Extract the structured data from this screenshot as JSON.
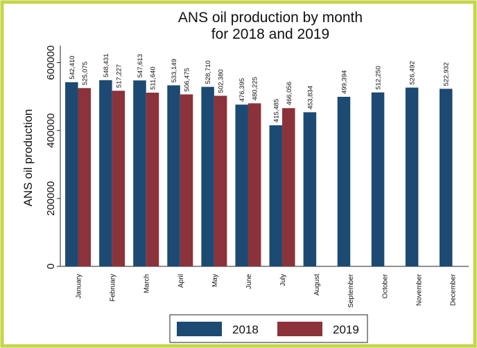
{
  "chart_data": {
    "type": "bar",
    "title": [
      "ANS oil production by month",
      "for 2018 and 2019"
    ],
    "y_label": "ANS oil production",
    "categories": [
      "January",
      "February",
      "March",
      "April",
      "May",
      "June",
      "July",
      "August",
      "September",
      "October",
      "November",
      "December"
    ],
    "series": [
      {
        "name": "2018",
        "color": "#1c4a72",
        "values": [
          542410,
          548431,
          547613,
          533149,
          528710,
          476395,
          415485,
          453834,
          499394,
          512250,
          526492,
          522932
        ],
        "value_labels": [
          "542,410",
          "548,431",
          "547,613",
          "533,149",
          "528,710",
          "476,395",
          "415,485",
          "453,834",
          "499,394",
          "512,250",
          "526,492",
          "522,932"
        ]
      },
      {
        "name": "2019",
        "color": "#8c323a",
        "values": [
          525075,
          517227,
          511640,
          506475,
          502380,
          480225,
          466056,
          null,
          null,
          null,
          null,
          null
        ],
        "value_labels": [
          "525,075",
          "517,227",
          "511,640",
          "506,475",
          "502,380",
          "480,225",
          "466,056",
          null,
          null,
          null,
          null,
          null
        ]
      }
    ],
    "ylim": [
      0,
      650000
    ],
    "yticks": [
      0,
      200000,
      400000,
      600000
    ],
    "legend": "bottom"
  }
}
